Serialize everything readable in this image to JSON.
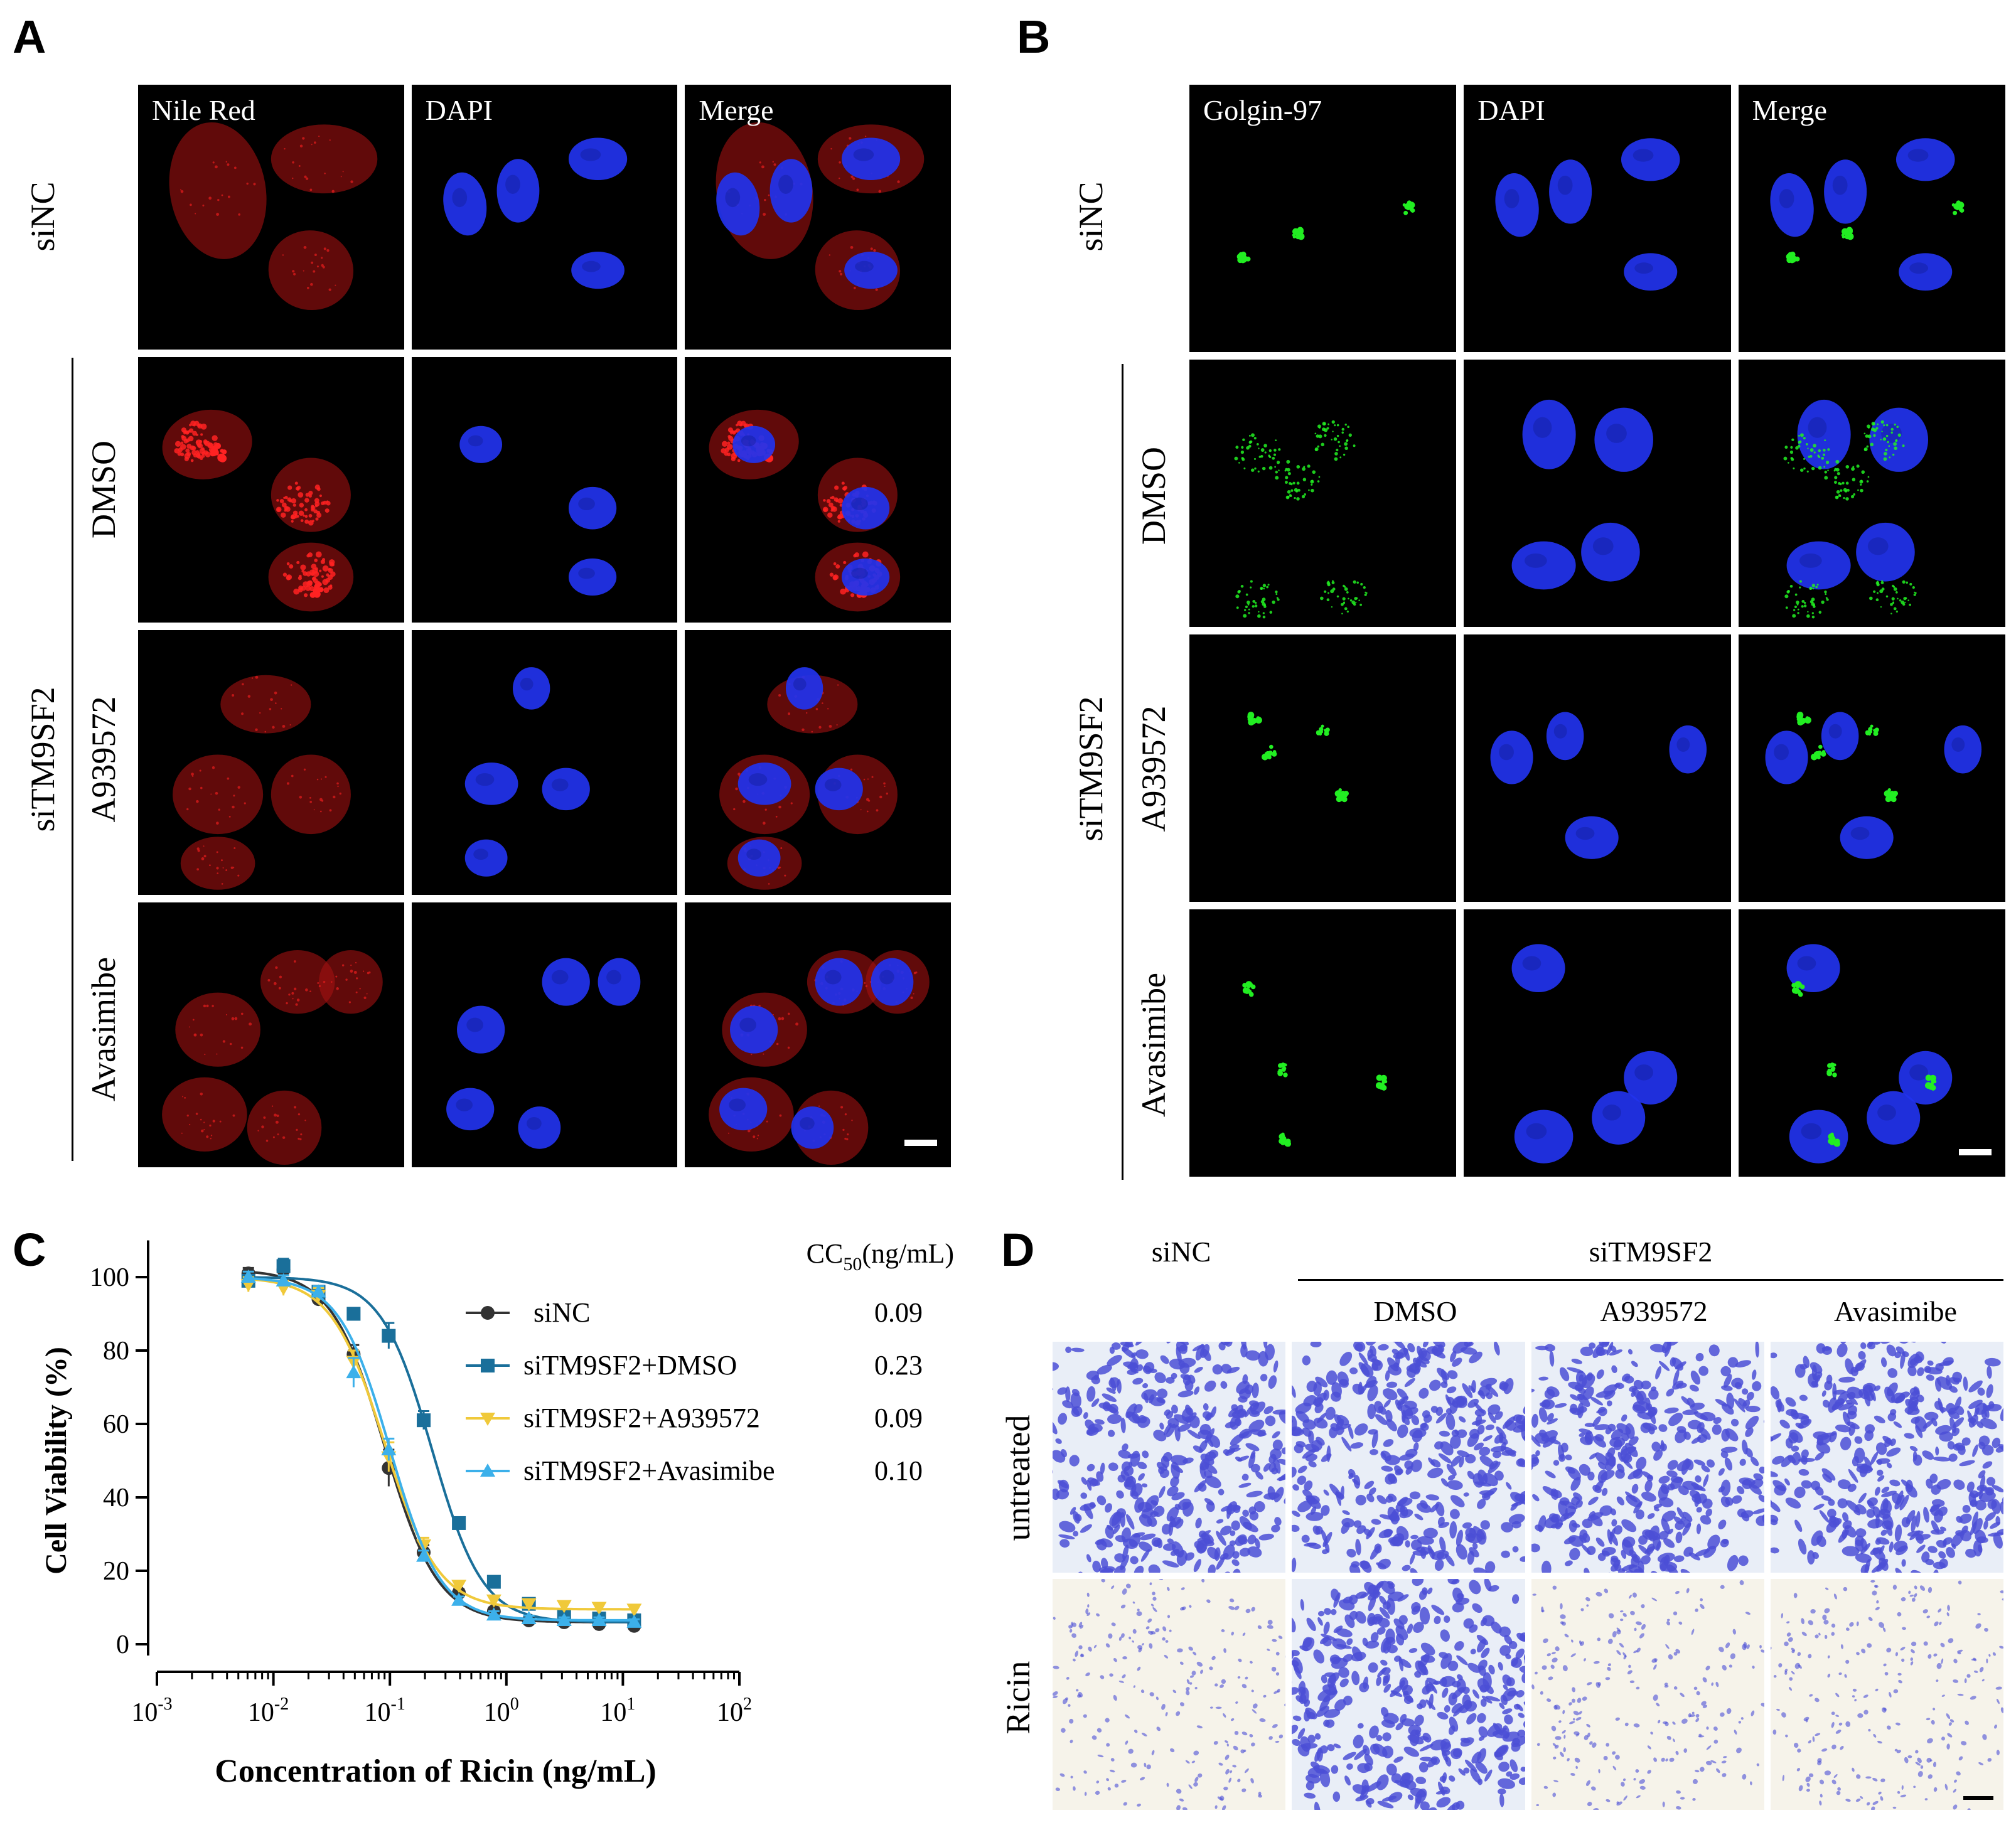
{
  "panels": {
    "A": "A",
    "B": "B",
    "C": "C",
    "D": "D"
  },
  "panel_a": {
    "channels": [
      "Nile Red",
      "DAPI",
      "Merge"
    ],
    "rows": [
      "siNC",
      "DMSO",
      "A939572",
      "Avasimibe"
    ],
    "group": "siTM9SF2",
    "colors": {
      "lipid": "#ff2222",
      "nucleus": "#2233ee"
    }
  },
  "panel_b": {
    "channels": [
      "Golgin-97",
      "DAPI",
      "Merge"
    ],
    "rows": [
      "siNC",
      "DMSO",
      "A939572",
      "Avasimibe"
    ],
    "group": "siTM9SF2",
    "colors": {
      "golgi": "#22ee22",
      "nucleus": "#2233ee"
    }
  },
  "chart_data": {
    "type": "line",
    "xscale": "log",
    "xlabel": "Concentration of Ricin (ng/mL)",
    "ylabel": "Cell Viability (%)",
    "xlim": [
      0.001,
      100
    ],
    "ylim": [
      0,
      110
    ],
    "xticks": [
      0.001,
      0.01,
      0.1,
      1,
      10,
      100
    ],
    "xtick_labels": [
      [
        "10",
        "-3"
      ],
      [
        "10",
        "-2"
      ],
      [
        "10",
        "-1"
      ],
      [
        "10",
        "0"
      ],
      [
        "10",
        "1"
      ],
      [
        "10",
        "2"
      ]
    ],
    "yticks": [
      0,
      20,
      40,
      60,
      80,
      100
    ],
    "legend_title": "CC",
    "legend_title_sub": "50",
    "legend_title_unit": "(ng/mL)",
    "legend_position": "top-right",
    "x": [
      0.0061,
      0.0122,
      0.0244,
      0.0488,
      0.0977,
      0.195,
      0.391,
      0.781,
      1.56,
      3.13,
      6.25,
      12.5
    ],
    "series": [
      {
        "name": "siNC",
        "cc50": "0.09",
        "color": "#333333",
        "marker": "circle",
        "top": 102,
        "bottom": 6,
        "ec50": 0.09,
        "hill": 1.9,
        "values": [
          101,
          102,
          94,
          79,
          48,
          25,
          14,
          9,
          6.5,
          6,
          5.5,
          5
        ],
        "errors": [
          1.5,
          1.5,
          1.5,
          2.5,
          5,
          2,
          1,
          1,
          0.8,
          0.8,
          0.8,
          0.8
        ]
      },
      {
        "name": "siTM9SF2+DMSO",
        "cc50": "0.23",
        "color": "#1a6f9a",
        "marker": "square",
        "top": 100,
        "bottom": 6,
        "ec50": 0.23,
        "hill": 2.0,
        "values": [
          99,
          103,
          96,
          90,
          84,
          61,
          33,
          17,
          11,
          8,
          7,
          6.5
        ],
        "errors": [
          1.5,
          2,
          1.5,
          1.5,
          3.5,
          2.5,
          1.5,
          1,
          1,
          1,
          1,
          1
        ]
      },
      {
        "name": "siTM9SF2+A939572",
        "cc50": "0.09",
        "color": "#f0c93a",
        "marker": "triangle-down",
        "top": 100,
        "bottom": 9.5,
        "ec50": 0.09,
        "hill": 1.9,
        "values": [
          98,
          97,
          95,
          77,
          51,
          27,
          16,
          12,
          11,
          10.5,
          10,
          9.5
        ],
        "errors": [
          2,
          2,
          2,
          3,
          4,
          2,
          1,
          1,
          1,
          1,
          1,
          1
        ]
      },
      {
        "name": "siTM9SF2+Avasimibe",
        "cc50": "0.10",
        "color": "#3cb0ea",
        "marker": "triangle-up",
        "top": 100,
        "bottom": 6.5,
        "ec50": 0.1,
        "hill": 2.0,
        "values": [
          100,
          99,
          96,
          74,
          53,
          24,
          12,
          8,
          7,
          6.5,
          6.5,
          6
        ],
        "errors": [
          1.5,
          1.5,
          1.5,
          4,
          3,
          1.5,
          1,
          1,
          0.8,
          0.8,
          0.8,
          0.8
        ]
      }
    ]
  },
  "panel_d": {
    "top_label": "siNC",
    "group": "siTM9SF2",
    "columns": [
      "DMSO",
      "A939572",
      "Avasimibe"
    ],
    "rows": [
      "untreated",
      "Ricin"
    ],
    "colors": {
      "stain": "#4b4fd6",
      "paper_dense": "#e9eef7",
      "paper_sparse": "#f6f3ea"
    }
  }
}
